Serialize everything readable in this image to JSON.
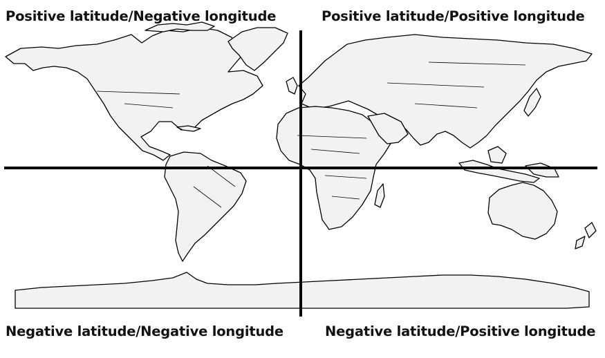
{
  "labels": {
    "top_left": "Positive latitude/Negative longitude",
    "top_right": "Positive latitude/Positive longitude",
    "bottom_left": "Negative latitude/Negative longitude",
    "bottom_right": "Negative latitude/Positive longitude"
  },
  "colors": {
    "land": "#f2f2f2",
    "outline": "#000000",
    "background": "#ffffff"
  }
}
